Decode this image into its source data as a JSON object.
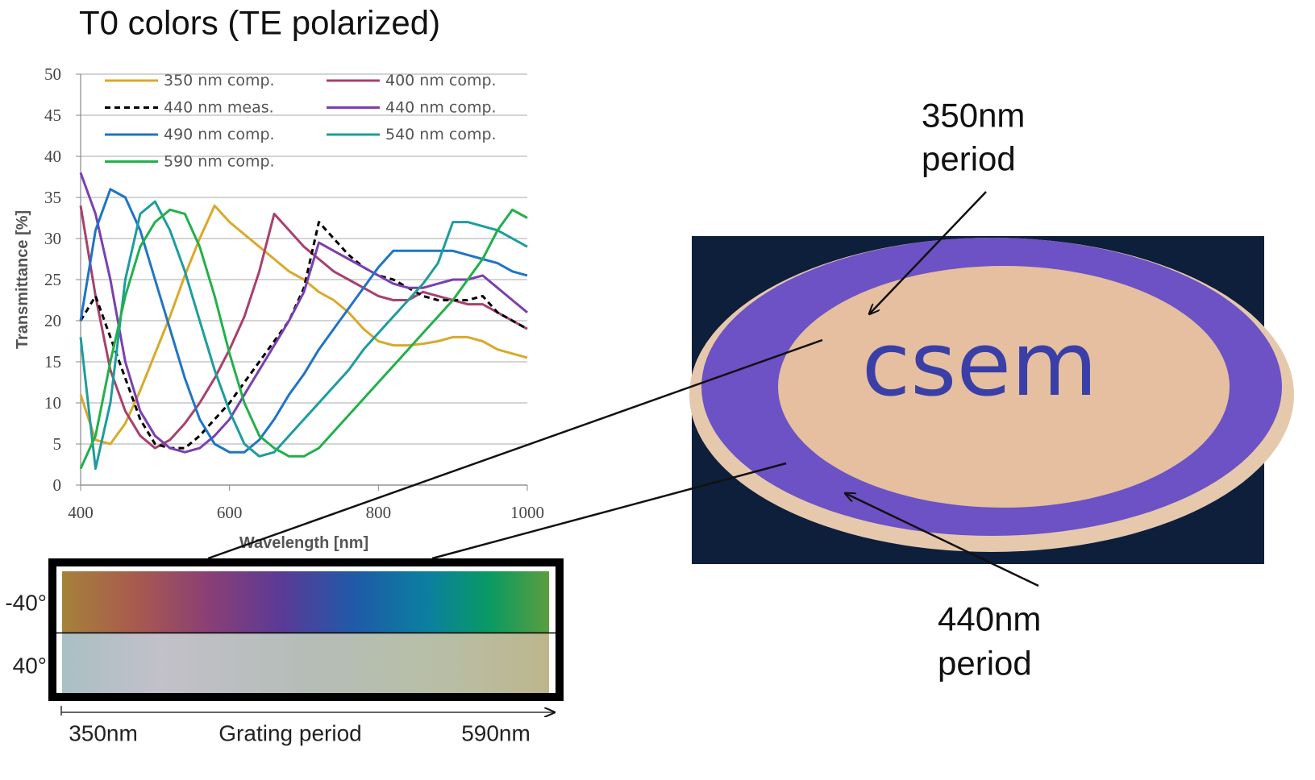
{
  "title": "T0 colors (TE polarized)",
  "chart_data": {
    "type": "line",
    "xlabel": "Wavelength [nm]",
    "ylabel": "Transmittance [%]",
    "x": [
      400,
      420,
      440,
      460,
      480,
      500,
      520,
      540,
      560,
      580,
      600,
      620,
      640,
      660,
      680,
      700,
      720,
      740,
      760,
      780,
      800,
      820,
      840,
      860,
      880,
      900,
      920,
      940,
      960,
      980,
      1000
    ],
    "xlim": [
      400,
      1000
    ],
    "xticks": [
      400,
      600,
      800,
      1000
    ],
    "ylim": [
      0,
      50
    ],
    "yticks": [
      0,
      5,
      10,
      15,
      20,
      25,
      30,
      35,
      40,
      45,
      50
    ],
    "grid": true,
    "series": [
      {
        "name": "350 nm comp.",
        "color": "#d9a92b",
        "values": [
          11,
          5.5,
          5,
          7.5,
          11.5,
          16,
          20.5,
          25.5,
          30,
          34,
          32,
          30.5,
          29,
          27.5,
          26,
          25,
          23.5,
          22.5,
          21,
          19,
          17.5,
          17,
          17,
          17.2,
          17.5,
          18,
          18,
          17.5,
          16.5,
          16,
          15.5
        ]
      },
      {
        "name": "400 nm comp.",
        "color": "#a8406f",
        "values": [
          34,
          23,
          14,
          9,
          6,
          4.5,
          5.5,
          7.5,
          10,
          13,
          16.5,
          20.5,
          26,
          33,
          31,
          29,
          27.5,
          26,
          25,
          24,
          23,
          22.5,
          22.5,
          23.5,
          23,
          22.5,
          22,
          22,
          21,
          20,
          19
        ]
      },
      {
        "name": "440 nm meas.",
        "color": "#000000",
        "dashed": true,
        "values": [
          20,
          23,
          18,
          13,
          8,
          5,
          4.5,
          4.5,
          6,
          8,
          10,
          12.5,
          15,
          17.5,
          20,
          24,
          32,
          30,
          28,
          26.5,
          25.5,
          25,
          24,
          23,
          22.5,
          22.5,
          22.5,
          23,
          21,
          20,
          19
        ]
      },
      {
        "name": "440 nm comp.",
        "color": "#7b3fb0",
        "values": [
          38,
          33,
          25,
          15,
          9,
          6,
          4.5,
          4,
          4.5,
          6,
          8,
          11,
          14,
          17,
          20,
          23.5,
          29.5,
          28.5,
          27.5,
          26.5,
          25.5,
          24.5,
          24,
          24,
          24.5,
          25,
          25,
          25.5,
          24,
          22.5,
          21
        ]
      },
      {
        "name": "490 nm comp.",
        "color": "#1f74c6",
        "values": [
          20,
          31,
          36,
          35,
          31,
          25,
          19,
          13,
          8,
          5,
          4,
          4,
          5.5,
          8,
          11,
          13.5,
          16.5,
          19,
          21.5,
          24,
          26.5,
          28.5,
          28.5,
          28.5,
          28.5,
          28.5,
          28,
          27.5,
          27,
          26,
          25.5
        ]
      },
      {
        "name": "540 nm comp.",
        "color": "#1e9c9e",
        "values": [
          18,
          2,
          10,
          25,
          33,
          34.5,
          31,
          26,
          20,
          14,
          9,
          5,
          3.5,
          4,
          6,
          8,
          10,
          12,
          14,
          16.5,
          18.5,
          20.5,
          22.5,
          24.5,
          27,
          32,
          32,
          31.5,
          31,
          30,
          29
        ]
      },
      {
        "name": "590 nm comp.",
        "color": "#22b04a",
        "values": [
          2,
          6,
          15,
          23,
          29,
          32,
          33.5,
          33,
          29,
          23,
          16,
          10,
          6,
          4.5,
          3.5,
          3.5,
          4.5,
          6.5,
          8.5,
          10.5,
          12.5,
          14.5,
          16.5,
          18.5,
          20.5,
          22.5,
          25,
          27.5,
          31,
          33.5,
          32.5
        ]
      }
    ]
  },
  "color_strip": {
    "rows": [
      "-40°",
      "40°"
    ],
    "axis": {
      "start": "350nm",
      "label": "Grating period",
      "end": "590nm"
    }
  },
  "photo": {
    "logo": "csem",
    "annotations": [
      [
        "350nm",
        "period"
      ],
      [
        "440nm",
        "period"
      ]
    ]
  }
}
